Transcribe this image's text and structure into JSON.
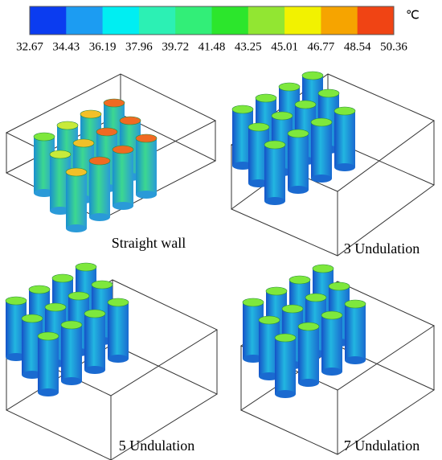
{
  "colorbar": {
    "unit": "℃",
    "ticks": [
      "32.67",
      "34.43",
      "36.19",
      "37.96",
      "39.72",
      "41.48",
      "43.25",
      "45.01",
      "46.77",
      "48.54",
      "50.36"
    ],
    "colors": [
      "#0b3cf0",
      "#1c9cf2",
      "#00eef2",
      "#2cf0b4",
      "#32ee78",
      "#2ce62c",
      "#92e632",
      "#f2f200",
      "#f6a400",
      "#f04414"
    ]
  },
  "panels": [
    {
      "label": "Straight wall"
    },
    {
      "label": "3 Undulation"
    },
    {
      "label": "5 Undulation"
    },
    {
      "label": "7 Undulation"
    }
  ]
}
